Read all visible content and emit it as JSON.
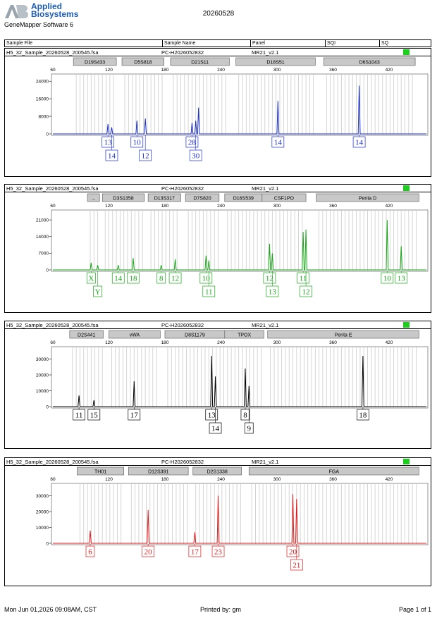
{
  "header": {
    "brand_line1": "Applied",
    "brand_line2": "Biosystems",
    "software": "GeneMapper Software 6",
    "title": "20260528"
  },
  "columns": {
    "sample_file": "Sample File",
    "sample_name": "Sample Name",
    "panel": "Panel",
    "sqi": "SQI",
    "sq": "SQ"
  },
  "footer": {
    "date": "Mon Jun 01,2026 09:08AM, CST",
    "printed_by": "Printed by: gm",
    "page": "Page 1 of 1"
  },
  "colors": {
    "blue": "#1a2fcc",
    "green": "#17a617",
    "black": "#000000",
    "red": "#e01a1a",
    "status": "#1ccf1c"
  },
  "panels": [
    {
      "file": "H5_32_Sample_20260528_200545.fsa",
      "name": "PC-H2026052832",
      "panel": "MR21_v2.1"
    },
    {
      "file": "H5_32_Sample_20260528_200545.fsa",
      "name": "PC-H2026052832",
      "panel": "MR21_v2.1"
    },
    {
      "file": "H5_32_Sample_20260528_200545.fsa",
      "name": "PC-H2026052832",
      "panel": "MR21_v2.1"
    },
    {
      "file": "H5_32_Sample_20260528_200545.fsa",
      "name": "PC-H2026052832",
      "panel": "MR21_v2.1"
    }
  ],
  "chart_data": [
    {
      "type": "line",
      "color": "blue",
      "xlim": [
        60,
        460
      ],
      "x_ticks": [
        60,
        120,
        180,
        240,
        300,
        360,
        420
      ],
      "ylim": [
        0,
        26000
      ],
      "y_ticks": [
        0,
        8000,
        16000,
        24000
      ],
      "markers": [
        {
          "label": "D19S433",
          "x0": 82,
          "x1": 128
        },
        {
          "label": "D5S818",
          "x0": 134,
          "x1": 179
        },
        {
          "label": "D21S11",
          "x0": 186,
          "x1": 249
        },
        {
          "label": "D18S51",
          "x0": 256,
          "x1": 341
        },
        {
          "label": "D6S1043",
          "x0": 350,
          "x1": 448
        }
      ],
      "peaks": [
        {
          "x": 119,
          "y": 4500
        },
        {
          "x": 123,
          "y": 3000
        },
        {
          "x": 150,
          "y": 6000
        },
        {
          "x": 159,
          "y": 7000
        },
        {
          "x": 209,
          "y": 5000
        },
        {
          "x": 213,
          "y": 6000
        },
        {
          "x": 216,
          "y": 12000
        },
        {
          "x": 301,
          "y": 15000
        },
        {
          "x": 388,
          "y": 22000
        }
      ],
      "alleles": [
        {
          "x": 119,
          "label": "13",
          "row": 0
        },
        {
          "x": 123,
          "label": "14",
          "row": 1
        },
        {
          "x": 150,
          "label": "10",
          "row": 0
        },
        {
          "x": 159,
          "label": "12",
          "row": 1
        },
        {
          "x": 209,
          "label": "28",
          "row": 0
        },
        {
          "x": 213,
          "label": "30",
          "row": 1
        },
        {
          "x": 301,
          "label": "14",
          "row": 0
        },
        {
          "x": 388,
          "label": "14",
          "row": 0
        }
      ]
    },
    {
      "type": "line",
      "color": "green",
      "xlim": [
        60,
        460
      ],
      "x_ticks": [
        60,
        120,
        180,
        240,
        300,
        360,
        420
      ],
      "ylim": [
        0,
        24000
      ],
      "y_ticks": [
        0,
        7000,
        14000,
        21000
      ],
      "markers": [
        {
          "label": "...",
          "x0": 97,
          "x1": 110
        },
        {
          "label": "D3S1358",
          "x0": 113,
          "x1": 158
        },
        {
          "label": "D13S317",
          "x0": 162,
          "x1": 197
        },
        {
          "label": "D7S820",
          "x0": 202,
          "x1": 238
        },
        {
          "label": "D16S539",
          "x0": 244,
          "x1": 284
        },
        {
          "label": "CSF1PO",
          "x0": 284,
          "x1": 331
        },
        {
          "label": "Penta D",
          "x0": 342,
          "x1": 452
        }
      ],
      "peaks": [
        {
          "x": 101,
          "y": 3000
        },
        {
          "x": 108,
          "y": 2000
        },
        {
          "x": 130,
          "y": 2000
        },
        {
          "x": 146,
          "y": 5000
        },
        {
          "x": 176,
          "y": 2000
        },
        {
          "x": 191,
          "y": 4500
        },
        {
          "x": 224,
          "y": 6000
        },
        {
          "x": 227,
          "y": 4000
        },
        {
          "x": 292,
          "y": 11000
        },
        {
          "x": 295,
          "y": 7000
        },
        {
          "x": 328,
          "y": 16000
        },
        {
          "x": 331,
          "y": 17000
        },
        {
          "x": 418,
          "y": 21000
        },
        {
          "x": 433,
          "y": 10000
        }
      ],
      "alleles": [
        {
          "x": 101,
          "label": "X",
          "row": 0
        },
        {
          "x": 108,
          "label": "Y",
          "row": 1
        },
        {
          "x": 130,
          "label": "14",
          "row": 0
        },
        {
          "x": 146,
          "label": "18",
          "row": 0
        },
        {
          "x": 176,
          "label": "8",
          "row": 0
        },
        {
          "x": 191,
          "label": "12",
          "row": 0
        },
        {
          "x": 224,
          "label": "10",
          "row": 0
        },
        {
          "x": 227,
          "label": "11",
          "row": 1
        },
        {
          "x": 292,
          "label": "12",
          "row": 0
        },
        {
          "x": 295,
          "label": "13",
          "row": 1
        },
        {
          "x": 328,
          "label": "11",
          "row": 0
        },
        {
          "x": 331,
          "label": "12",
          "row": 1
        },
        {
          "x": 418,
          "label": "10",
          "row": 0
        },
        {
          "x": 433,
          "label": "13",
          "row": 0
        }
      ]
    },
    {
      "type": "line",
      "color": "black",
      "xlim": [
        60,
        460
      ],
      "x_ticks": [
        60,
        120,
        180,
        240,
        300,
        360,
        420
      ],
      "ylim": [
        0,
        36000
      ],
      "y_ticks": [
        0,
        10000,
        20000,
        30000
      ],
      "markers": [
        {
          "label": "D2S441",
          "x0": 78,
          "x1": 114
        },
        {
          "label": "vWA",
          "x0": 120,
          "x1": 175
        },
        {
          "label": "D8S1179",
          "x0": 180,
          "x1": 244
        },
        {
          "label": "TPOX",
          "x0": 244,
          "x1": 286
        },
        {
          "label": "Penta E",
          "x0": 290,
          "x1": 452
        }
      ],
      "peaks": [
        {
          "x": 88,
          "y": 7000
        },
        {
          "x": 104,
          "y": 4000
        },
        {
          "x": 147,
          "y": 16000
        },
        {
          "x": 230,
          "y": 32000
        },
        {
          "x": 234,
          "y": 19000
        },
        {
          "x": 266,
          "y": 24000
        },
        {
          "x": 270,
          "y": 13000
        },
        {
          "x": 392,
          "y": 32000
        }
      ],
      "alleles": [
        {
          "x": 88,
          "label": "11",
          "row": 0
        },
        {
          "x": 104,
          "label": "15",
          "row": 0
        },
        {
          "x": 147,
          "label": "17",
          "row": 0
        },
        {
          "x": 230,
          "label": "13",
          "row": 0
        },
        {
          "x": 234,
          "label": "14",
          "row": 1
        },
        {
          "x": 266,
          "label": "8",
          "row": 0
        },
        {
          "x": 270,
          "label": "9",
          "row": 1
        },
        {
          "x": 392,
          "label": "18",
          "row": 0
        }
      ]
    },
    {
      "type": "line",
      "color": "red",
      "xlim": [
        60,
        460
      ],
      "x_ticks": [
        60,
        120,
        180,
        240,
        300,
        360,
        420
      ],
      "ylim": [
        0,
        36000
      ],
      "y_ticks": [
        0,
        10000,
        20000,
        30000
      ],
      "markers": [
        {
          "label": "TH01",
          "x0": 86,
          "x1": 136
        },
        {
          "label": "D12S391",
          "x0": 141,
          "x1": 205
        },
        {
          "label": "D2S1338",
          "x0": 210,
          "x1": 262
        },
        {
          "label": "FGA",
          "x0": 270,
          "x1": 452
        }
      ],
      "peaks": [
        {
          "x": 100,
          "y": 8000
        },
        {
          "x": 162,
          "y": 21000
        },
        {
          "x": 212,
          "y": 7000
        },
        {
          "x": 237,
          "y": 30000
        },
        {
          "x": 317,
          "y": 31000
        },
        {
          "x": 321,
          "y": 28000
        }
      ],
      "alleles": [
        {
          "x": 100,
          "label": "6",
          "row": 0
        },
        {
          "x": 162,
          "label": "20",
          "row": 0
        },
        {
          "x": 212,
          "label": "17",
          "row": 0
        },
        {
          "x": 237,
          "label": "23",
          "row": 0
        },
        {
          "x": 317,
          "label": "20",
          "row": 0
        },
        {
          "x": 321,
          "label": "21",
          "row": 1
        }
      ]
    }
  ]
}
